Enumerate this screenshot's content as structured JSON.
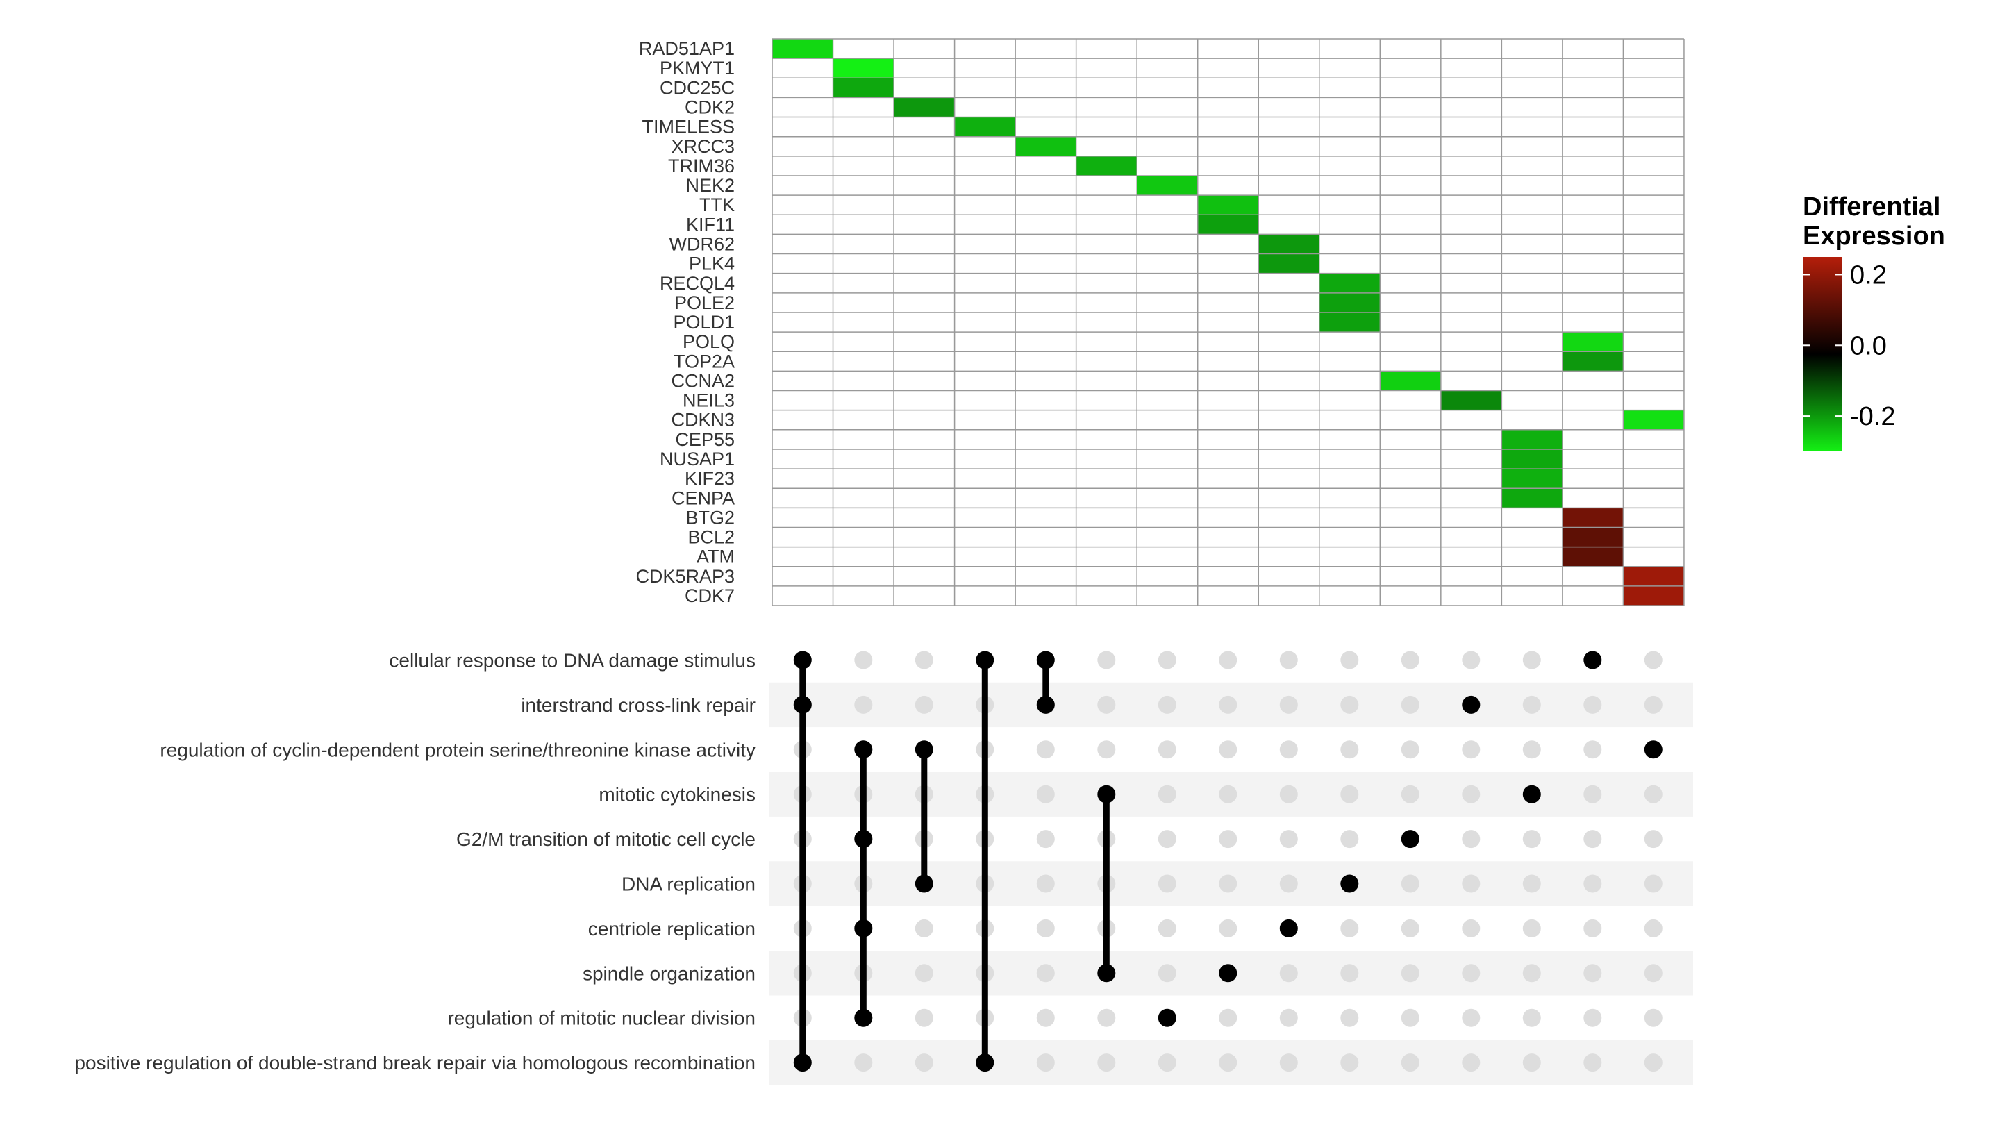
{
  "chart_data": [
    {
      "type": "heatmap",
      "title": "",
      "xlabel": "",
      "ylabel": "",
      "genes": [
        "RAD51AP1",
        "PKMYT1",
        "CDC25C",
        "CDK2",
        "TIMELESS",
        "XRCC3",
        "TRIM36",
        "NEK2",
        "TTK",
        "KIF11",
        "WDR62",
        "PLK4",
        "RECQL4",
        "POLE2",
        "POLD1",
        "POLQ",
        "TOP2A",
        "CCNA2",
        "NEIL3",
        "CDKN3",
        "CEP55",
        "NUSAP1",
        "KIF23",
        "CENPA",
        "BTG2",
        "BCL2",
        "ATM",
        "CDK5RAP3",
        "CDK7"
      ],
      "n_columns": 15,
      "cells": [
        {
          "gene": "RAD51AP1",
          "col": 1,
          "value": -0.27
        },
        {
          "gene": "PKMYT1",
          "col": 2,
          "value": -0.3
        },
        {
          "gene": "CDC25C",
          "col": 2,
          "value": -0.21
        },
        {
          "gene": "CDK2",
          "col": 3,
          "value": -0.19
        },
        {
          "gene": "TIMELESS",
          "col": 4,
          "value": -0.22
        },
        {
          "gene": "XRCC3",
          "col": 5,
          "value": -0.24
        },
        {
          "gene": "TRIM36",
          "col": 6,
          "value": -0.22
        },
        {
          "gene": "NEK2",
          "col": 7,
          "value": -0.25
        },
        {
          "gene": "TTK",
          "col": 8,
          "value": -0.24
        },
        {
          "gene": "KIF11",
          "col": 8,
          "value": -0.2
        },
        {
          "gene": "WDR62",
          "col": 9,
          "value": -0.19
        },
        {
          "gene": "PLK4",
          "col": 9,
          "value": -0.19
        },
        {
          "gene": "RECQL4",
          "col": 10,
          "value": -0.21
        },
        {
          "gene": "POLE2",
          "col": 10,
          "value": -0.2
        },
        {
          "gene": "POLD1",
          "col": 10,
          "value": -0.2
        },
        {
          "gene": "POLQ",
          "col": 14,
          "value": -0.27
        },
        {
          "gene": "TOP2A",
          "col": 14,
          "value": -0.19
        },
        {
          "gene": "CCNA2",
          "col": 11,
          "value": -0.26
        },
        {
          "gene": "NEIL3",
          "col": 12,
          "value": -0.17
        },
        {
          "gene": "CDKN3",
          "col": 15,
          "value": -0.28
        },
        {
          "gene": "CEP55",
          "col": 13,
          "value": -0.22
        },
        {
          "gene": "NUSAP1",
          "col": 13,
          "value": -0.21
        },
        {
          "gene": "KIF23",
          "col": 13,
          "value": -0.22
        },
        {
          "gene": "CENPA",
          "col": 13,
          "value": -0.21
        },
        {
          "gene": "BTG2",
          "col": 14,
          "value": 0.16
        },
        {
          "gene": "BCL2",
          "col": 14,
          "value": 0.13
        },
        {
          "gene": "ATM",
          "col": 14,
          "value": 0.13
        },
        {
          "gene": "CDK5RAP3",
          "col": 15,
          "value": 0.22
        },
        {
          "gene": "CDK7",
          "col": 15,
          "value": 0.22
        }
      ],
      "legend": {
        "title": [
          "Differential",
          "Expression"
        ],
        "ticks": [
          0.2,
          0.0,
          -0.2
        ],
        "tick_labels": [
          "0.2",
          "0.0",
          "-0.2"
        ],
        "range": [
          -0.3,
          0.25
        ],
        "colors": {
          "low": "#14f014",
          "mid": "#000000",
          "high": "#b41e0a"
        },
        "placement": "right"
      },
      "colors": {
        "empty_cell": "#ffffff",
        "grid": "#999999"
      }
    },
    {
      "type": "matrix",
      "title": "",
      "terms": [
        "cellular response to DNA damage stimulus",
        "interstrand cross-link repair",
        "regulation of cyclin-dependent protein serine/threonine kinase activity",
        "mitotic cytokinesis",
        "G2/M transition of mitotic cell cycle",
        "DNA replication",
        "centriole replication",
        "spindle organization",
        "regulation of mitotic nuclear division",
        "positive regulation of double-strand break repair via homologous recombination"
      ],
      "n_columns": 15,
      "memberships": [
        [
          1,
          2,
          10
        ],
        [
          3,
          5,
          7,
          9
        ],
        [
          3,
          6
        ],
        [
          1,
          10
        ],
        [
          1,
          2
        ],
        [
          4,
          8
        ],
        [
          9
        ],
        [
          8
        ],
        [
          7
        ],
        [
          6
        ],
        [
          5
        ],
        [
          2
        ],
        [
          4
        ],
        [
          1
        ],
        [
          3
        ]
      ],
      "colors": {
        "active_dot": "#000000",
        "inactive_dot": "#dddddd",
        "stripe": "#f3f3f3"
      }
    }
  ]
}
